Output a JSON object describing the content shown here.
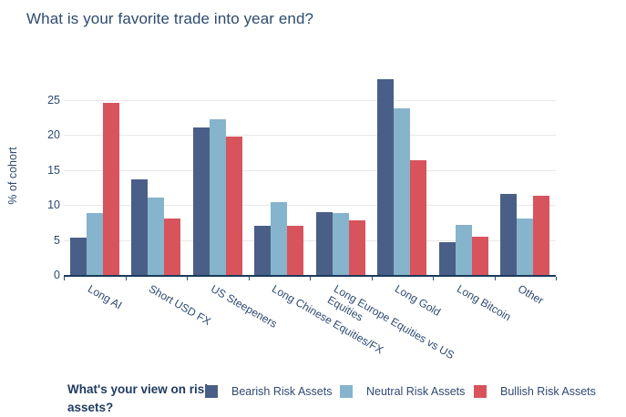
{
  "title": "What is your favorite trade into year end?",
  "colors": {
    "title_text": "#2d4a6e",
    "axis_text": "#2e4a70",
    "legend_title_text": "#1e3a5f",
    "axis_line": "#1b3a5c",
    "gridline": "#e7e7e7",
    "background": "#ffffff"
  },
  "chart_data": {
    "type": "bar",
    "title": "What is your favorite trade into year end?",
    "xlabel": "",
    "ylabel": "% of cohort",
    "ylim": [
      0,
      28.2
    ],
    "yticks": [
      0,
      5,
      10,
      15,
      20,
      25
    ],
    "grid": true,
    "legend_position": "bottom",
    "legend_title": "What's your view on risky assets?",
    "categories": [
      "Long AI",
      "Short USD FX",
      "US Steepeners",
      "Long Chinese Equities/FX",
      "Long Europe Equities vs US\nEquities",
      "Long Gold",
      "Long Bitcoin",
      "Other"
    ],
    "series": [
      {
        "name": "Bearish Risk Assets",
        "color": "#4a5f87",
        "values": [
          5.3,
          13.6,
          21.1,
          7.0,
          9.0,
          27.9,
          4.7,
          11.6
        ]
      },
      {
        "name": "Neutral Risk Assets",
        "color": "#85b4cc",
        "values": [
          8.8,
          11.1,
          22.2,
          10.4,
          8.8,
          23.8,
          7.1,
          8.0
        ]
      },
      {
        "name": "Bullish Risk Assets",
        "color": "#d8545d",
        "values": [
          24.5,
          8.1,
          19.7,
          7.0,
          7.8,
          16.4,
          5.4,
          11.3
        ]
      }
    ]
  }
}
